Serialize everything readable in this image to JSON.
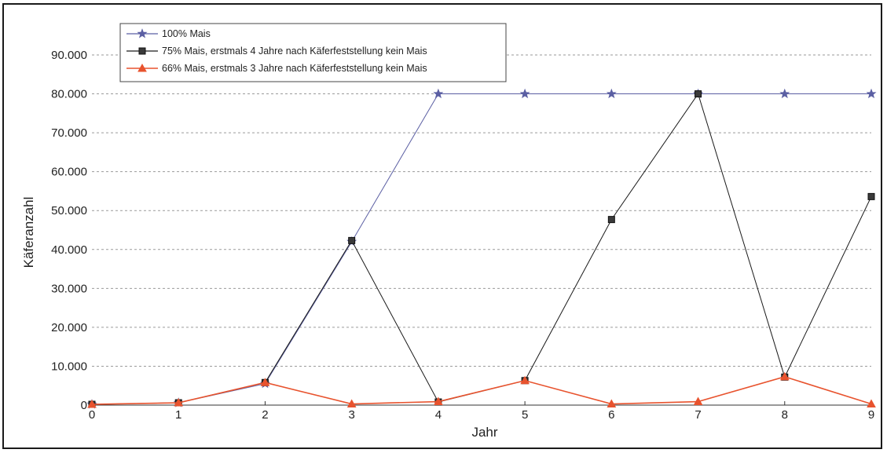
{
  "chart_data": {
    "type": "line",
    "title": "",
    "xlabel": "Jahr",
    "ylabel": "Käferanzahl",
    "x": [
      0,
      1,
      2,
      3,
      4,
      5,
      6,
      7,
      8,
      9
    ],
    "xlim": [
      0,
      9
    ],
    "ylim": [
      0,
      90000
    ],
    "xticks": [
      0,
      1,
      2,
      3,
      4,
      5,
      6,
      7,
      8,
      9
    ],
    "yticks": [
      0,
      10000,
      20000,
      30000,
      40000,
      50000,
      60000,
      70000,
      80000,
      90000
    ],
    "ytick_labels": [
      "0",
      "10.000",
      "20.000",
      "30.000",
      "40.000",
      "50.000",
      "60.000",
      "70.000",
      "80.000",
      "90.000"
    ],
    "grid": "horizontal dashed",
    "legend_position": "top-left",
    "series": [
      {
        "name": "100% Mais",
        "color": "#5b5fa3",
        "marker": "star",
        "values": [
          200,
          600,
          5500,
          42000,
          80000,
          80000,
          80000,
          80000,
          80000,
          80000
        ]
      },
      {
        "name": "75% Mais, erstmals 4 Jahre nach Käferfeststellung kein Mais",
        "color": "#1a1a1a",
        "marker": "square",
        "values": [
          200,
          600,
          5800,
          42300,
          800,
          6300,
          47700,
          80000,
          7200,
          53600
        ]
      },
      {
        "name": "66% Mais, erstmals 3 Jahre nach Käferfeststellung kein Mais",
        "color": "#e8532e",
        "marker": "triangle",
        "values": [
          200,
          600,
          5800,
          300,
          900,
          6300,
          300,
          900,
          7300,
          300
        ]
      }
    ]
  }
}
